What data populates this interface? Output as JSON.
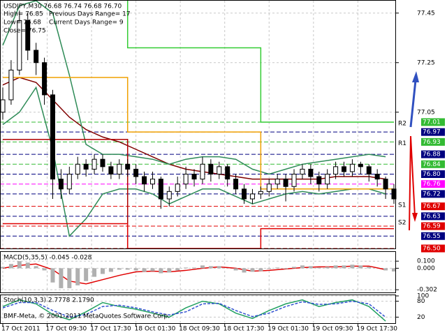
{
  "chart_data": [
    {
      "type": "candlestick",
      "title": "USDJPY,M30  76.68 76.74 76.68 76.70",
      "annotations": [
        "High= 76.85",
        "Low= 76.68",
        "Close= 76.75",
        "Previous Days Range= 17",
        "Current Days Range= 9"
      ],
      "x": [
        0,
        3,
        6,
        9,
        12,
        15,
        18,
        21,
        24,
        27,
        30,
        33,
        36,
        39,
        42,
        45,
        48,
        51,
        54,
        57,
        60,
        63,
        66,
        69,
        72,
        75,
        78,
        81,
        84,
        87,
        90,
        93,
        96,
        99,
        102,
        105,
        108,
        111,
        114,
        117,
        120,
        123,
        126,
        129,
        132,
        135,
        138,
        141
      ],
      "open": [
        77.05,
        77.1,
        77.22,
        77.42,
        77.3,
        77.25,
        77.12,
        76.78,
        76.74,
        76.8,
        76.84,
        76.82,
        76.86,
        76.83,
        76.8,
        76.84,
        76.82,
        76.79,
        76.76,
        76.78,
        76.7,
        76.73,
        76.76,
        76.8,
        76.78,
        76.84,
        76.8,
        76.83,
        76.78,
        76.74,
        76.7,
        76.72,
        76.73,
        76.76,
        76.78,
        76.75,
        76.8,
        76.82,
        76.79,
        76.76,
        76.8,
        76.83,
        76.81,
        76.84,
        76.83,
        76.8,
        76.78,
        76.74
      ],
      "high": [
        77.15,
        77.26,
        77.46,
        77.45,
        77.33,
        77.27,
        77.14,
        76.82,
        76.83,
        76.87,
        76.86,
        76.88,
        76.88,
        76.85,
        76.86,
        76.86,
        76.84,
        76.81,
        76.81,
        76.79,
        76.75,
        76.79,
        76.83,
        76.82,
        76.87,
        76.86,
        76.85,
        76.84,
        76.8,
        76.76,
        76.74,
        76.75,
        76.78,
        76.8,
        76.8,
        76.82,
        76.84,
        76.84,
        76.81,
        76.82,
        76.85,
        76.85,
        76.86,
        76.85,
        76.84,
        76.82,
        76.79,
        76.76
      ],
      "low": [
        77.02,
        77.08,
        77.2,
        77.26,
        77.2,
        77.08,
        76.7,
        76.7,
        76.72,
        76.78,
        76.79,
        76.8,
        76.81,
        76.78,
        76.78,
        76.79,
        76.76,
        76.73,
        76.74,
        76.66,
        76.67,
        76.71,
        76.74,
        76.75,
        76.76,
        76.77,
        76.78,
        76.75,
        76.72,
        76.68,
        76.68,
        76.7,
        76.71,
        76.74,
        76.69,
        76.73,
        76.78,
        76.76,
        76.73,
        76.74,
        76.78,
        76.79,
        76.79,
        76.8,
        76.77,
        76.75,
        76.7,
        76.68
      ],
      "close": [
        77.1,
        77.22,
        77.42,
        77.3,
        77.25,
        77.12,
        76.78,
        76.74,
        76.8,
        76.84,
        76.82,
        76.86,
        76.83,
        76.8,
        76.84,
        76.82,
        76.79,
        76.76,
        76.78,
        76.7,
        76.73,
        76.76,
        76.8,
        76.78,
        76.84,
        76.8,
        76.83,
        76.78,
        76.74,
        76.7,
        76.72,
        76.73,
        76.76,
        76.78,
        76.75,
        76.8,
        76.82,
        76.79,
        76.76,
        76.8,
        76.83,
        76.81,
        76.84,
        76.83,
        76.8,
        76.78,
        76.74,
        76.7
      ],
      "bull_color": "#ffffff",
      "bear_color": "#000000",
      "lines": [
        {
          "color": "#800000",
          "x": [
            0,
            6,
            12,
            18,
            24,
            30,
            36,
            42,
            48,
            54,
            60,
            66,
            72,
            78,
            84,
            90,
            96,
            102,
            108,
            114,
            120,
            126,
            132,
            138
          ],
          "values": [
            77.16,
            77.19,
            77.17,
            77.1,
            77.03,
            76.98,
            76.95,
            76.93,
            76.9,
            76.87,
            76.84,
            76.82,
            76.81,
            76.8,
            76.79,
            76.78,
            76.78,
            76.78,
            76.78,
            76.78,
            76.79,
            76.79,
            76.79,
            76.78
          ]
        },
        {
          "color": "#2e8b57",
          "x": [
            0,
            6,
            12,
            18,
            24,
            30,
            36,
            42,
            48,
            54,
            60,
            66,
            72,
            78,
            84,
            90,
            96,
            102,
            108,
            114,
            120,
            126,
            132,
            138
          ],
          "values": [
            77.32,
            77.48,
            77.5,
            77.45,
            77.2,
            76.92,
            76.88,
            76.88,
            76.87,
            76.86,
            76.84,
            76.86,
            76.87,
            76.87,
            76.86,
            76.82,
            76.8,
            76.82,
            76.84,
            76.85,
            76.86,
            76.87,
            76.88,
            76.87
          ]
        },
        {
          "color": "#2e8b57",
          "x": [
            0,
            6,
            12,
            18,
            24,
            30,
            36,
            42,
            48,
            54,
            60,
            66,
            72,
            78,
            84,
            90,
            96,
            102,
            108,
            114,
            120,
            126,
            132,
            138
          ],
          "values": [
            77.0,
            77.05,
            77.15,
            76.9,
            76.55,
            76.62,
            76.72,
            76.74,
            76.74,
            76.72,
            76.68,
            76.71,
            76.74,
            76.74,
            76.71,
            76.68,
            76.7,
            76.72,
            76.73,
            76.72,
            76.73,
            76.74,
            76.74,
            76.72
          ]
        },
        {
          "color": "#f0a000",
          "x": [
            0,
            45,
            45,
            93,
            93,
            141
          ],
          "values": [
            77.19,
            77.19,
            76.97,
            76.97,
            76.74,
            76.74
          ]
        },
        {
          "color": "#33cc33",
          "x": [
            45,
            45,
            93,
            93,
            141
          ],
          "values": [
            77.5,
            77.31,
            77.31,
            77.01,
            77.01
          ]
        },
        {
          "color": "#b00000",
          "x": [
            0,
            45,
            45
          ],
          "values": [
            76.94,
            76.94,
            76.5
          ]
        },
        {
          "color": "#e00000",
          "x": [
            0,
            45,
            45,
            93,
            93,
            141
          ],
          "values": [
            76.6,
            76.6,
            76.5,
            76.5,
            76.58,
            76.58
          ]
        }
      ],
      "levels": [
        {
          "value": 77.01,
          "color": "#33bb33"
        },
        {
          "value": 76.97,
          "color": "#000080"
        },
        {
          "value": 76.93,
          "color": "#33bb33"
        },
        {
          "value": 76.88,
          "color": "#000080"
        },
        {
          "value": 76.84,
          "color": "#33bb33"
        },
        {
          "value": 76.8,
          "label": "76.80",
          "color": "#000080"
        },
        {
          "value": 76.76,
          "color": "#ff00ff"
        },
        {
          "value": 76.72,
          "color": "#000080"
        },
        {
          "value": 76.67,
          "color": "#e00000"
        },
        {
          "value": 76.63,
          "color": "#000080"
        },
        {
          "value": 76.59,
          "color": "#e00000"
        },
        {
          "value": 76.55,
          "color": "#000080"
        },
        {
          "value": 76.5,
          "label": "76.50",
          "color": "#e00000"
        }
      ],
      "pivots": [
        {
          "name": "R2",
          "value": 76.99
        },
        {
          "name": "R1",
          "value": 76.91
        },
        {
          "name": "S1",
          "value": 76.66
        },
        {
          "name": "S2",
          "value": 76.59
        }
      ],
      "xlim": [
        0,
        141
      ],
      "xticks": [
        {
          "value": 0,
          "label": "17 Oct 2011"
        },
        {
          "value": 16,
          "label": "17 Oct 09:30"
        },
        {
          "value": 32,
          "label": "17 Oct 17:30"
        },
        {
          "value": 48,
          "label": "18 Oct 01:30"
        },
        {
          "value": 64,
          "label": "18 Oct 09:30"
        },
        {
          "value": 80,
          "label": "18 Oct 17:30"
        },
        {
          "value": 96,
          "label": "19 Oct 01:30"
        },
        {
          "value": 112,
          "label": "19 Oct 09:30"
        },
        {
          "value": 128,
          "label": "19 Oct 17:30"
        }
      ],
      "ylim": [
        76.5,
        77.5
      ],
      "yticks": [
        77.45,
        77.25,
        77.05
      ],
      "grid": true
    },
    {
      "type": "bar",
      "title": "MACD(5,35,5) -0.045 -0.028",
      "x": [
        0,
        3,
        6,
        9,
        12,
        15,
        18,
        21,
        24,
        27,
        30,
        33,
        36,
        39,
        42,
        45,
        48,
        51,
        54,
        57,
        60,
        63,
        66,
        69,
        72,
        75,
        78,
        81,
        84,
        87,
        90,
        93,
        96,
        99,
        102,
        105,
        108,
        111,
        114,
        117,
        120,
        123,
        126,
        129,
        132,
        135,
        138,
        141
      ],
      "values": [
        0.02,
        0.06,
        0.1,
        0.08,
        0.03,
        -0.03,
        -0.2,
        -0.28,
        -0.28,
        -0.24,
        -0.18,
        -0.12,
        -0.08,
        -0.05,
        -0.02,
        -0.02,
        -0.03,
        -0.05,
        -0.04,
        -0.07,
        -0.06,
        -0.03,
        0.01,
        0.01,
        0.04,
        0.03,
        0.03,
        0.0,
        -0.03,
        -0.06,
        -0.05,
        -0.04,
        -0.01,
        0.01,
        -0.01,
        0.02,
        0.04,
        0.03,
        0.01,
        0.02,
        0.04,
        0.04,
        0.05,
        0.04,
        0.02,
        0.0,
        -0.03,
        -0.045
      ],
      "color": "#b0b0b0",
      "lines": [
        {
          "color": "#e00000",
          "x": [
            0,
            6,
            12,
            18,
            24,
            30,
            36,
            42,
            48,
            54,
            60,
            66,
            72,
            78,
            84,
            90,
            96,
            102,
            108,
            114,
            120,
            126,
            132,
            138
          ],
          "values": [
            0.0,
            0.04,
            0.06,
            -0.02,
            -0.18,
            -0.22,
            -0.16,
            -0.1,
            -0.05,
            -0.04,
            -0.05,
            -0.03,
            0.0,
            0.02,
            0.0,
            -0.04,
            -0.03,
            -0.01,
            0.01,
            0.02,
            0.02,
            0.03,
            0.03,
            -0.02
          ]
        }
      ],
      "ylim": [
        -0.33,
        0.2
      ],
      "yticks": [
        {
          "value": 0.1,
          "label": "0.100"
        },
        {
          "value": 0,
          "label": "0.000"
        },
        -0.302
      ],
      "grid": true
    },
    {
      "type": "line",
      "title": "Stoch(10,3,3) 2.7778 2.1790",
      "annotations": [
        "BMF-Meta, © 2001-2011 MetaQuotes Software Corp."
      ],
      "lines": [
        {
          "color": "#20a060",
          "x": [
            0,
            6,
            12,
            18,
            24,
            30,
            36,
            42,
            48,
            54,
            60,
            66,
            72,
            78,
            84,
            90,
            96,
            102,
            108,
            114,
            120,
            126,
            132,
            138
          ],
          "values": [
            60,
            85,
            70,
            30,
            10,
            40,
            75,
            60,
            50,
            35,
            20,
            55,
            80,
            70,
            35,
            15,
            45,
            70,
            85,
            60,
            75,
            85,
            60,
            5
          ]
        },
        {
          "color": "#3050d0",
          "dash": true,
          "x": [
            0,
            6,
            12,
            18,
            24,
            30,
            36,
            42,
            48,
            54,
            60,
            66,
            72,
            78,
            84,
            90,
            96,
            102,
            108,
            114,
            120,
            126,
            132,
            138
          ],
          "values": [
            55,
            75,
            75,
            45,
            20,
            30,
            60,
            65,
            55,
            40,
            28,
            40,
            70,
            72,
            45,
            22,
            35,
            60,
            78,
            68,
            70,
            80,
            70,
            20
          ]
        }
      ],
      "ylim": [
        0,
        100
      ],
      "yticks": [
        100,
        80,
        20
      ],
      "grid": true
    }
  ]
}
